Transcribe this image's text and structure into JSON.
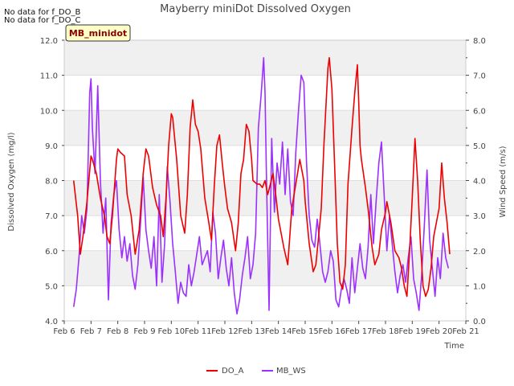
{
  "chart_data": {
    "type": "line",
    "title": "Mayberry miniDot Dissolved Oxygen",
    "notes": [
      "No data for f_DO_B",
      "No data for f_DO_C"
    ],
    "badge": "MB_minidot",
    "xlabel": "Time",
    "ylabel_left": "Dissolved Oxygen (mg/l)",
    "ylabel_right": "Wind Speed (m/s)",
    "x_ticks": [
      "Feb 6",
      "Feb 7",
      "Feb 8",
      "Feb 9",
      "Feb 10",
      "Feb 11",
      "Feb 12",
      "Feb 13",
      "Feb 14",
      "Feb 15",
      "Feb 16",
      "Feb 17",
      "Feb 18",
      "Feb 19",
      "Feb 20",
      "Feb 21"
    ],
    "xlim": [
      6,
      21
    ],
    "ylim_left": [
      4.0,
      12.0
    ],
    "ylim_right": [
      0.0,
      8.0
    ],
    "yticks_left": [
      "4.0",
      "5.0",
      "6.0",
      "7.0",
      "8.0",
      "9.0",
      "10.0",
      "11.0",
      "12.0"
    ],
    "yticks_right": [
      "0.0",
      "1.0",
      "2.0",
      "3.0",
      "4.0",
      "5.0",
      "6.0",
      "7.0",
      "8.0"
    ],
    "grid": true,
    "legend_position": "bottom-center",
    "series": [
      {
        "name": "DO_A",
        "color": "#ee0000",
        "axis": "left",
        "x": [
          6.35,
          6.5,
          6.6,
          6.7,
          6.85,
          7.0,
          7.05,
          7.2,
          7.35,
          7.5,
          7.6,
          7.7,
          7.8,
          7.95,
          8.0,
          8.1,
          8.25,
          8.35,
          8.5,
          8.65,
          8.8,
          8.95,
          9.05,
          9.15,
          9.3,
          9.45,
          9.6,
          9.7,
          9.8,
          9.9,
          10.0,
          10.05,
          10.2,
          10.35,
          10.5,
          10.6,
          10.7,
          10.8,
          10.9,
          11.0,
          11.1,
          11.25,
          11.4,
          11.5,
          11.6,
          11.7,
          11.8,
          11.9,
          12.0,
          12.1,
          12.25,
          12.4,
          12.5,
          12.6,
          12.7,
          12.8,
          12.9,
          13.0,
          13.05,
          13.2,
          13.3,
          13.4,
          13.5,
          13.6,
          13.7,
          13.8,
          13.9,
          14.0,
          14.1,
          14.2,
          14.35,
          14.5,
          14.65,
          14.8,
          14.95,
          15.0,
          15.15,
          15.3,
          15.4,
          15.5,
          15.6,
          15.7,
          15.85,
          15.9,
          16.0,
          16.1,
          16.2,
          16.3,
          16.4,
          16.5,
          16.6,
          16.75,
          16.85,
          16.95,
          17.0,
          17.05,
          17.1,
          17.25,
          17.35,
          17.5,
          17.6,
          17.75,
          17.85,
          18.0,
          18.05,
          18.2,
          18.35,
          18.5,
          18.6,
          18.7,
          18.8,
          18.9,
          19.0,
          19.1,
          19.2,
          19.3,
          19.4,
          19.5,
          19.6,
          19.7,
          19.8,
          19.95,
          20.0,
          20.1,
          20.2,
          20.3,
          20.4
        ],
        "y": [
          8.0,
          7.0,
          5.9,
          6.4,
          7.4,
          8.7,
          8.6,
          8.2,
          7.5,
          7.0,
          6.4,
          6.2,
          7.0,
          8.6,
          8.9,
          8.8,
          8.7,
          7.6,
          7.0,
          5.9,
          6.6,
          8.2,
          8.9,
          8.7,
          7.8,
          7.3,
          7.0,
          6.4,
          7.5,
          9.0,
          9.9,
          9.8,
          8.6,
          7.0,
          6.5,
          7.6,
          9.5,
          10.3,
          9.6,
          9.4,
          8.9,
          7.5,
          6.8,
          6.3,
          7.8,
          9.0,
          9.3,
          8.5,
          7.8,
          7.2,
          6.8,
          6.0,
          6.8,
          8.2,
          8.6,
          9.6,
          9.4,
          8.6,
          8.0,
          7.9,
          7.9,
          7.8,
          8.0,
          7.6,
          7.9,
          8.2,
          7.6,
          6.9,
          6.5,
          6.1,
          5.6,
          7.2,
          7.9,
          8.6,
          8.0,
          7.4,
          6.2,
          5.4,
          5.6,
          6.4,
          7.2,
          9.0,
          11.2,
          11.5,
          10.6,
          8.4,
          6.2,
          5.1,
          4.9,
          5.6,
          7.9,
          9.5,
          10.5,
          11.3,
          10.2,
          9.0,
          8.6,
          7.8,
          7.2,
          6.1,
          5.6,
          5.9,
          6.6,
          7.1,
          7.4,
          6.8,
          6.0,
          5.8,
          5.5,
          5.0,
          4.7,
          6.0,
          7.5,
          9.2,
          8.0,
          6.3,
          5.0,
          4.7,
          4.9,
          5.5,
          6.4,
          7.0,
          7.2,
          8.5,
          7.5,
          6.8,
          5.9
        ]
      },
      {
        "name": "MB_WS",
        "color": "#9b30ff",
        "axis": "right",
        "x": [
          6.35,
          6.45,
          6.55,
          6.65,
          6.75,
          6.85,
          6.95,
          7.0,
          7.05,
          7.15,
          7.25,
          7.35,
          7.45,
          7.55,
          7.65,
          7.75,
          7.85,
          7.95,
          8.05,
          8.15,
          8.25,
          8.35,
          8.45,
          8.55,
          8.65,
          8.75,
          8.85,
          8.95,
          9.05,
          9.15,
          9.25,
          9.35,
          9.45,
          9.55,
          9.65,
          9.75,
          9.85,
          9.95,
          10.05,
          10.15,
          10.25,
          10.35,
          10.45,
          10.55,
          10.65,
          10.75,
          10.85,
          10.95,
          11.05,
          11.15,
          11.25,
          11.35,
          11.45,
          11.55,
          11.65,
          11.75,
          11.85,
          11.95,
          12.05,
          12.15,
          12.25,
          12.35,
          12.45,
          12.55,
          12.65,
          12.75,
          12.85,
          12.95,
          13.05,
          13.15,
          13.25,
          13.35,
          13.45,
          13.5,
          13.55,
          13.65,
          13.75,
          13.85,
          13.95,
          14.05,
          14.15,
          14.25,
          14.35,
          14.45,
          14.55,
          14.65,
          14.75,
          14.85,
          14.95,
          15.05,
          15.15,
          15.25,
          15.35,
          15.45,
          15.55,
          15.65,
          15.75,
          15.85,
          15.95,
          16.05,
          16.15,
          16.25,
          16.35,
          16.45,
          16.55,
          16.65,
          16.75,
          16.85,
          16.95,
          17.05,
          17.15,
          17.25,
          17.35,
          17.45,
          17.55,
          17.65,
          17.75,
          17.85,
          17.95,
          18.05,
          18.15,
          18.25,
          18.35,
          18.45,
          18.55,
          18.65,
          18.75,
          18.85,
          18.95,
          19.05,
          19.15,
          19.25,
          19.35,
          19.45,
          19.55,
          19.65,
          19.75,
          19.85,
          19.95,
          20.05,
          20.15,
          20.25,
          20.35
        ],
        "y": [
          0.4,
          0.9,
          1.8,
          3.0,
          2.5,
          3.2,
          6.5,
          6.9,
          5.5,
          4.2,
          6.7,
          4.0,
          2.5,
          3.5,
          0.6,
          2.8,
          3.6,
          4.0,
          2.6,
          1.8,
          2.4,
          1.7,
          2.2,
          1.3,
          0.9,
          1.6,
          2.8,
          4.1,
          2.6,
          2.0,
          1.5,
          2.4,
          1.0,
          3.6,
          1.1,
          2.2,
          4.4,
          3.4,
          2.2,
          1.4,
          0.5,
          1.1,
          0.8,
          0.7,
          1.6,
          1.0,
          1.4,
          1.9,
          2.4,
          1.6,
          1.8,
          2.0,
          1.4,
          3.1,
          2.5,
          1.2,
          1.8,
          2.3,
          1.5,
          1.0,
          1.8,
          0.8,
          0.2,
          0.6,
          1.3,
          1.8,
          2.4,
          1.2,
          1.6,
          2.5,
          5.5,
          6.4,
          7.5,
          6.5,
          4.2,
          0.3,
          5.2,
          3.1,
          4.5,
          3.9,
          5.1,
          3.6,
          4.9,
          3.4,
          3.0,
          4.8,
          6.0,
          7.0,
          6.8,
          4.5,
          3.0,
          2.3,
          2.1,
          2.9,
          2.2,
          1.4,
          1.1,
          1.4,
          2.0,
          1.7,
          0.6,
          0.4,
          0.9,
          1.2,
          0.9,
          0.5,
          1.8,
          0.8,
          1.5,
          2.2,
          1.5,
          1.2,
          2.1,
          3.6,
          2.2,
          3.4,
          4.5,
          5.1,
          3.6,
          2.0,
          3.0,
          2.2,
          1.4,
          0.8,
          1.3,
          1.6,
          1.1,
          1.8,
          2.4,
          1.2,
          0.8,
          0.3,
          1.3,
          2.7,
          4.3,
          2.3,
          1.5,
          0.7,
          1.8,
          1.2,
          2.5,
          1.8,
          1.5
        ]
      }
    ]
  }
}
